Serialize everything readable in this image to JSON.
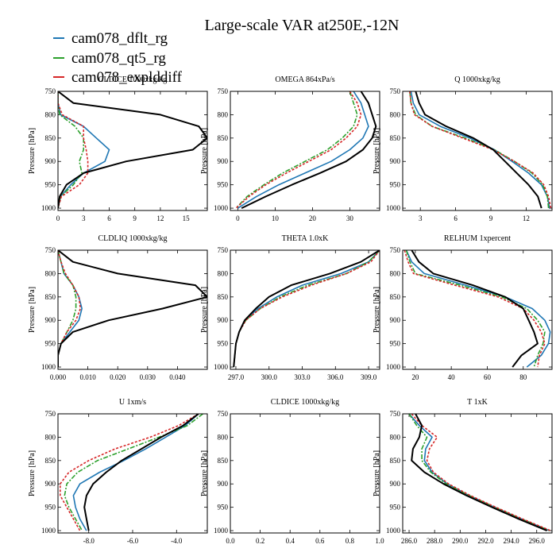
{
  "title": "Large-scale VAR at250E,-12N",
  "legend": [
    {
      "name": "cam078_dflt_rg",
      "color": "#1f77b4"
    },
    {
      "name": "cam078_qt5_rg",
      "color": "#2ca02c"
    },
    {
      "name": "cam078_explddiff",
      "color": "#d62728"
    }
  ],
  "colors": {
    "obs": "#000000",
    "dflt": "#1f77b4",
    "qt5": "#2ca02c",
    "expl": "#d62728"
  },
  "chart_data": [
    {
      "type": "line",
      "title": "CLDICE 1000xkg/kg",
      "ylabel": "Pressure [hPa]",
      "ylim": [
        750,
        1005
      ],
      "yticks": [
        750,
        800,
        850,
        900,
        950,
        1000
      ],
      "xlim": [
        0,
        17.5
      ],
      "xticks": [
        0,
        3,
        6,
        9,
        12,
        15
      ],
      "xtick_labels": [
        "0",
        "3",
        "6",
        "9",
        "12",
        "15"
      ],
      "p": [
        750,
        775,
        800,
        825,
        850,
        875,
        900,
        925,
        950,
        975,
        1000
      ],
      "series": [
        {
          "key": "obs",
          "values": [
            0.0,
            1.8,
            12.0,
            16.5,
            17.5,
            15.8,
            8.0,
            3.0,
            1.0,
            0.2,
            0.0
          ]
        },
        {
          "key": "dflt",
          "values": [
            0.0,
            0.0,
            0.3,
            3.0,
            4.5,
            6.0,
            5.5,
            3.0,
            1.5,
            0.3,
            0.0
          ]
        },
        {
          "key": "qt5",
          "values": [
            0.0,
            0.0,
            0.2,
            2.0,
            3.0,
            3.0,
            2.5,
            2.8,
            1.8,
            0.3,
            0.0
          ]
        },
        {
          "key": "expl",
          "values": [
            0.0,
            0.0,
            0.5,
            3.0,
            3.0,
            3.3,
            3.5,
            3.5,
            2.5,
            0.4,
            0.0
          ]
        }
      ]
    },
    {
      "type": "line",
      "title": "OMEGA 864xPa/s",
      "ylabel": "Pressure [hPa]",
      "ylim": [
        750,
        1005
      ],
      "yticks": [
        750,
        800,
        850,
        900,
        950,
        1000
      ],
      "xlim": [
        -2,
        38
      ],
      "xticks": [
        0,
        10,
        20,
        30
      ],
      "xtick_labels": [
        "0",
        "10",
        "20",
        "30"
      ],
      "p": [
        750,
        775,
        800,
        825,
        850,
        875,
        900,
        925,
        950,
        975,
        1000
      ],
      "series": [
        {
          "key": "obs",
          "values": [
            33,
            35,
            36,
            37,
            36,
            33.5,
            29,
            22,
            14.5,
            7.5,
            1.0
          ]
        },
        {
          "key": "dflt",
          "values": [
            31,
            33,
            34,
            35,
            33.5,
            30,
            25,
            18,
            11,
            5,
            0.0
          ]
        },
        {
          "key": "qt5",
          "values": [
            30,
            31,
            32,
            31,
            28,
            24,
            18,
            12,
            7,
            2.5,
            -0.5
          ]
        },
        {
          "key": "expl",
          "values": [
            30,
            32,
            33,
            32,
            29,
            25,
            19,
            13,
            7.5,
            3,
            -0.5
          ]
        }
      ]
    },
    {
      "type": "line",
      "title": "Q 1000xkg/kg",
      "ylabel": "Pressure [hPa]",
      "ylim": [
        750,
        1005
      ],
      "yticks": [
        750,
        800,
        850,
        900,
        950,
        1000
      ],
      "xlim": [
        1.5,
        14.2
      ],
      "xticks": [
        3,
        6,
        9,
        12
      ],
      "xtick_labels": [
        "3",
        "6",
        "9",
        "12"
      ],
      "p": [
        750,
        775,
        800,
        825,
        850,
        875,
        900,
        925,
        950,
        975,
        1000
      ],
      "series": [
        {
          "key": "obs",
          "values": [
            2.6,
            2.9,
            3.4,
            5.2,
            7.5,
            9.2,
            10.2,
            11.2,
            12.2,
            13.0,
            13.3
          ]
        },
        {
          "key": "dflt",
          "values": [
            2.2,
            2.4,
            2.9,
            4.7,
            7.2,
            9.3,
            10.8,
            12.2,
            13.3,
            13.8,
            14.0
          ]
        },
        {
          "key": "qt5",
          "values": [
            2.1,
            2.2,
            2.6,
            4.0,
            6.8,
            9.3,
            11.0,
            12.5,
            13.4,
            13.8,
            13.9
          ]
        },
        {
          "key": "expl",
          "values": [
            2.1,
            2.2,
            2.5,
            4.0,
            6.6,
            9.2,
            11.0,
            12.6,
            13.5,
            13.9,
            14.1
          ]
        }
      ]
    },
    {
      "type": "line",
      "title": "CLDLIQ 1000xkg/kg",
      "ylabel": "Pressure [hPa]",
      "ylim": [
        750,
        1005
      ],
      "yticks": [
        750,
        800,
        850,
        900,
        950,
        1000
      ],
      "xlim": [
        0,
        0.05
      ],
      "xticks": [
        0.0,
        0.01,
        0.02,
        0.03,
        0.04
      ],
      "xtick_labels": [
        "0.000",
        "0.010",
        "0.020",
        "0.030",
        "0.040"
      ],
      "p": [
        750,
        775,
        800,
        825,
        850,
        875,
        900,
        925,
        950,
        975,
        1000
      ],
      "series": [
        {
          "key": "obs",
          "values": [
            0.0,
            0.005,
            0.02,
            0.046,
            0.05,
            0.035,
            0.017,
            0.005,
            0.001,
            0.0,
            0.0
          ]
        },
        {
          "key": "dflt",
          "values": [
            0.0,
            0.001,
            0.002,
            0.005,
            0.007,
            0.008,
            0.007,
            0.004,
            0.001,
            0.0,
            0.0
          ]
        },
        {
          "key": "qt5",
          "values": [
            0.0,
            0.001,
            0.002,
            0.005,
            0.006,
            0.006,
            0.005,
            0.003,
            0.001,
            0.0,
            0.0
          ]
        },
        {
          "key": "expl",
          "values": [
            0.0,
            0.001,
            0.0025,
            0.005,
            0.007,
            0.0075,
            0.006,
            0.003,
            0.001,
            0.0,
            0.0
          ]
        }
      ]
    },
    {
      "type": "line",
      "title": "THETA 1.0xK",
      "ylabel": "Pressure [hPa]",
      "ylim": [
        750,
        1005
      ],
      "yticks": [
        750,
        800,
        850,
        900,
        950,
        1000
      ],
      "xlim": [
        296.5,
        310.0
      ],
      "xticks": [
        297.0,
        300.0,
        303.0,
        306.0,
        309.0
      ],
      "xtick_labels": [
        "297.0",
        "300.0",
        "303.0",
        "306.0",
        "309.0"
      ],
      "p": [
        750,
        775,
        800,
        825,
        850,
        875,
        900,
        925,
        950,
        975,
        1000
      ],
      "series": [
        {
          "key": "obs",
          "values": [
            310.0,
            308.3,
            305.5,
            302.0,
            300.0,
            298.8,
            297.8,
            297.3,
            297.0,
            296.9,
            296.8
          ]
        },
        {
          "key": "dflt",
          "values": [
            310.0,
            309.0,
            306.5,
            303.0,
            300.7,
            299.0,
            297.8,
            297.3,
            297.0,
            296.9,
            296.8
          ]
        },
        {
          "key": "qt5",
          "values": [
            310.0,
            309.0,
            307.0,
            303.5,
            301.0,
            299.2,
            297.9,
            297.3,
            297.0,
            296.9,
            296.8
          ]
        },
        {
          "key": "expl",
          "values": [
            310.0,
            309.2,
            307.0,
            303.8,
            301.2,
            299.2,
            297.9,
            297.3,
            297.0,
            296.9,
            296.8
          ]
        }
      ]
    },
    {
      "type": "line",
      "title": "RELHUM 1xpercent",
      "ylabel": "Pressure [hPa]",
      "ylim": [
        750,
        1005
      ],
      "yticks": [
        750,
        800,
        850,
        900,
        950,
        1000
      ],
      "xlim": [
        13,
        96
      ],
      "xticks": [
        20,
        40,
        60,
        80
      ],
      "xtick_labels": [
        "20",
        "40",
        "60",
        "80"
      ],
      "p": [
        750,
        775,
        800,
        825,
        850,
        875,
        900,
        925,
        950,
        975,
        1000
      ],
      "series": [
        {
          "key": "obs",
          "values": [
            18,
            22,
            30,
            52,
            70,
            80,
            83,
            86,
            88,
            79,
            74
          ]
        },
        {
          "key": "dflt",
          "values": [
            15,
            18,
            25,
            48,
            70,
            85,
            92,
            95,
            94,
            90,
            82
          ]
        },
        {
          "key": "qt5",
          "values": [
            15,
            17,
            20,
            45,
            68,
            82,
            88,
            92,
            91,
            88,
            86
          ]
        },
        {
          "key": "expl",
          "values": [
            14,
            16,
            19,
            42,
            66,
            80,
            86,
            90,
            92,
            89,
            88
          ]
        }
      ]
    },
    {
      "type": "line",
      "title": "U 1xm/s",
      "ylabel": "Pressure [hPa]",
      "ylim": [
        750,
        1005
      ],
      "yticks": [
        750,
        800,
        850,
        900,
        950,
        1000
      ],
      "xlim": [
        -9.4,
        -2.6
      ],
      "xticks": [
        -8.0,
        -6.0,
        -4.0
      ],
      "xtick_labels": [
        "-8.0",
        "-6.0",
        "-4.0"
      ],
      "p": [
        750,
        775,
        800,
        825,
        850,
        875,
        900,
        925,
        950,
        975,
        1000
      ],
      "series": [
        {
          "key": "obs",
          "values": [
            -3.0,
            -3.7,
            -4.7,
            -5.6,
            -6.5,
            -7.2,
            -7.8,
            -8.1,
            -8.2,
            -8.1,
            -8.0
          ]
        },
        {
          "key": "dflt",
          "values": [
            -3.0,
            -3.6,
            -4.5,
            -5.4,
            -6.4,
            -7.5,
            -8.4,
            -8.7,
            -8.6,
            -8.4,
            -8.1
          ]
        },
        {
          "key": "qt5",
          "values": [
            -2.8,
            -3.5,
            -4.8,
            -6.2,
            -7.6,
            -8.5,
            -9.0,
            -9.1,
            -8.9,
            -8.6,
            -8.3
          ]
        },
        {
          "key": "expl",
          "values": [
            -3.0,
            -3.9,
            -5.2,
            -6.8,
            -8.0,
            -8.9,
            -9.3,
            -9.3,
            -9.0,
            -8.7,
            -8.4
          ]
        }
      ]
    },
    {
      "type": "line",
      "title": "CLDICE 1000xkg/kg",
      "ylabel": "Pressure [hPa]",
      "ylim": [
        750,
        1005
      ],
      "yticks": [
        750,
        800,
        850,
        900,
        950,
        1000
      ],
      "xlim": [
        0,
        1.0
      ],
      "xticks": [
        0.0,
        0.2,
        0.4,
        0.6,
        0.8,
        1.0
      ],
      "xtick_labels": [
        "0.0",
        "0.2",
        "0.4",
        "0.6",
        "0.8",
        "1.0"
      ],
      "p": [],
      "series": []
    },
    {
      "type": "line",
      "title": "T 1xK",
      "ylabel": "Pressure [hPa]",
      "ylim": [
        750,
        1005
      ],
      "yticks": [
        750,
        800,
        850,
        900,
        950,
        1000
      ],
      "xlim": [
        285.5,
        297.2
      ],
      "xticks": [
        286.0,
        288.0,
        290.0,
        292.0,
        294.0,
        296.0
      ],
      "xtick_labels": [
        "286.0",
        "288.0",
        "290.0",
        "292.0",
        "294.0",
        "296.0"
      ],
      "p": [
        750,
        775,
        800,
        825,
        850,
        875,
        900,
        925,
        950,
        975,
        1000
      ],
      "series": [
        {
          "key": "obs",
          "values": [
            286.5,
            287.0,
            286.8,
            286.3,
            286.2,
            287.2,
            288.7,
            290.5,
            292.5,
            294.6,
            296.8
          ]
        },
        {
          "key": "dflt",
          "values": [
            286.0,
            286.8,
            287.8,
            287.3,
            287.2,
            287.8,
            289.0,
            290.7,
            292.7,
            294.8,
            297.0
          ]
        },
        {
          "key": "qt5",
          "values": [
            286.0,
            286.6,
            287.4,
            287.0,
            287.0,
            287.7,
            288.9,
            290.7,
            292.7,
            294.8,
            297.0
          ]
        },
        {
          "key": "expl",
          "values": [
            286.2,
            287.0,
            288.2,
            287.6,
            287.4,
            287.9,
            289.1,
            290.8,
            292.8,
            294.9,
            297.1
          ]
        }
      ]
    }
  ]
}
